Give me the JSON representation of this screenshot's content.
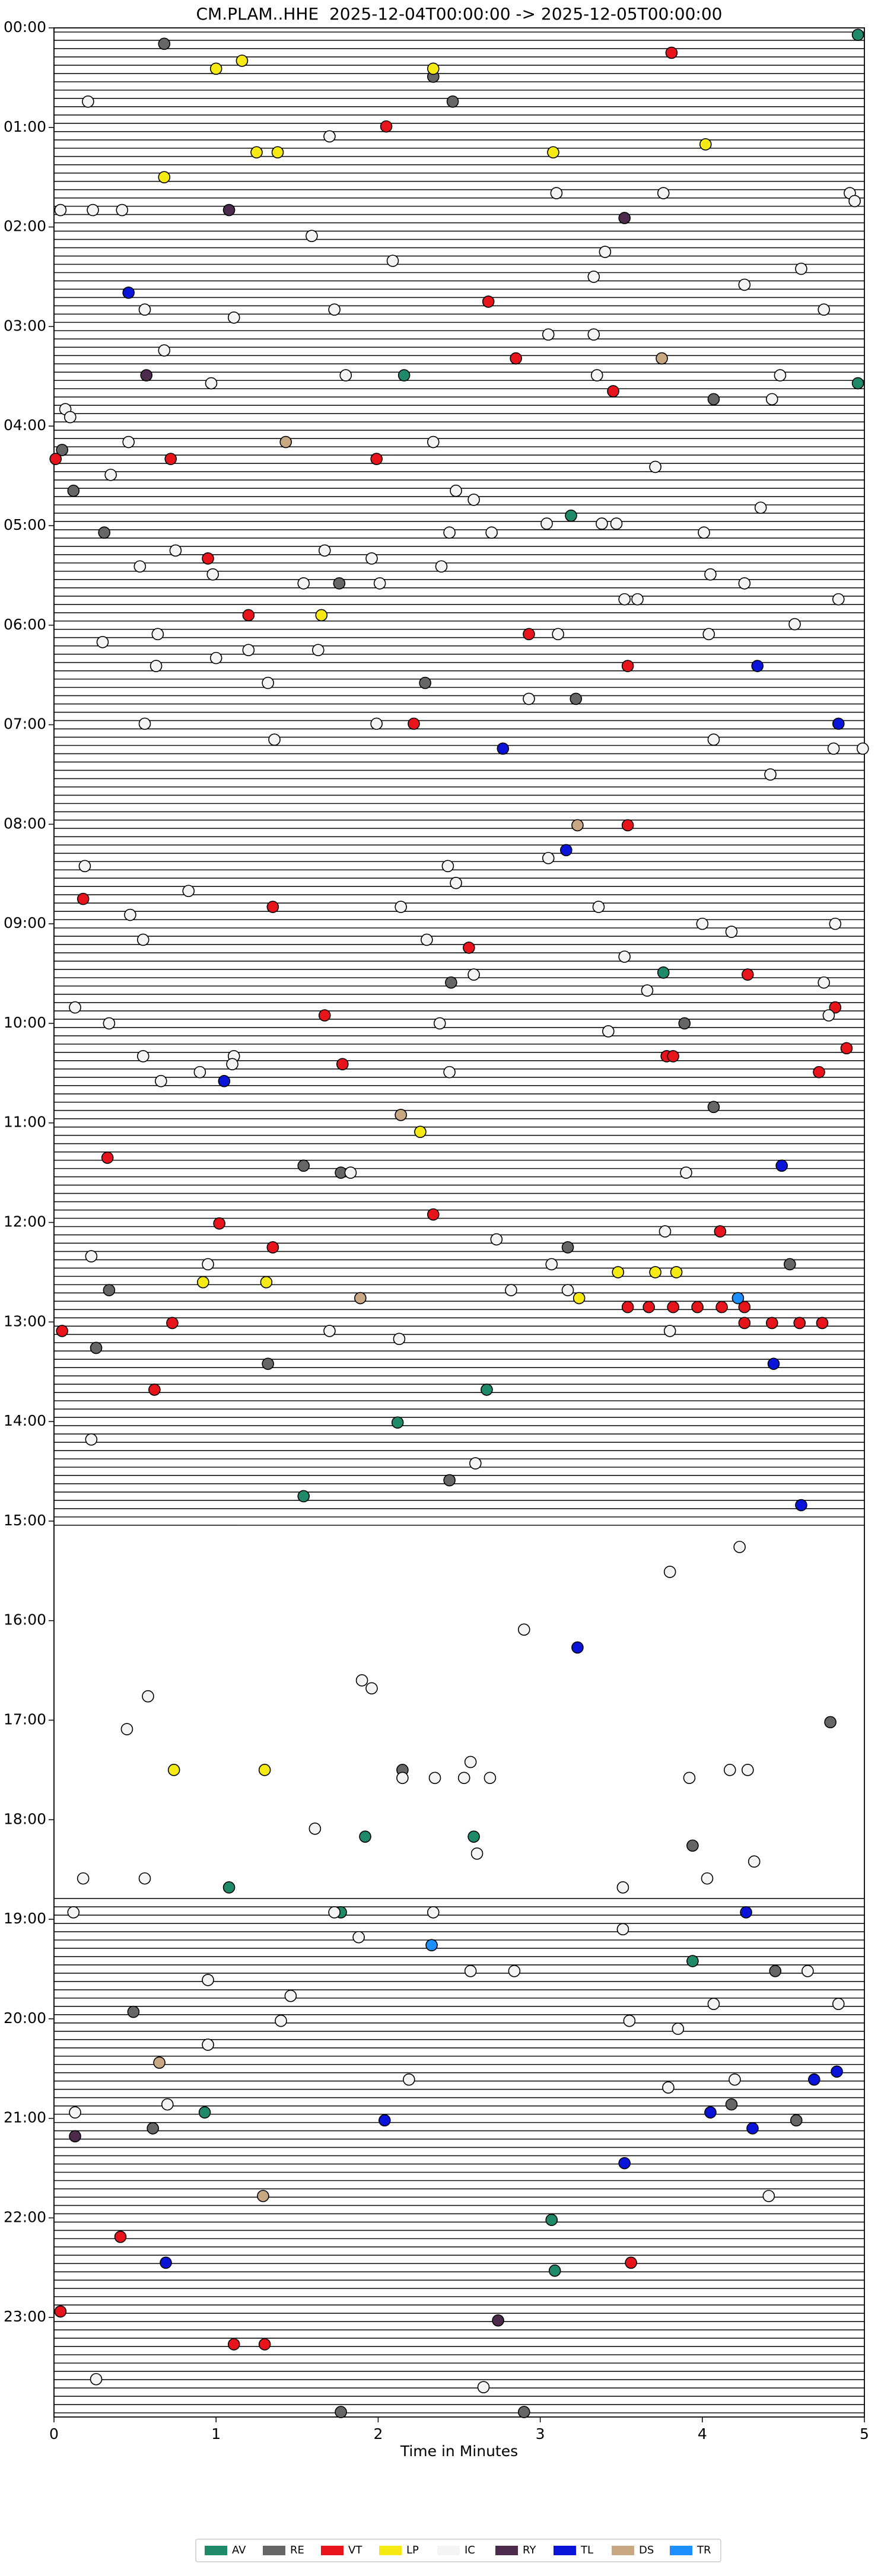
{
  "chart_data": {
    "type": "scatter",
    "title": "CM.PLAM..HHE  2025-12-04T00:00:00 -> 2025-12-05T00:00:00",
    "xlabel": "Time in Minutes",
    "xlim": [
      0,
      5
    ],
    "xticks": [
      0,
      1,
      2,
      3,
      4,
      5
    ],
    "ylim": [
      24,
      0
    ],
    "yticks": [
      {
        "value": 0,
        "label": "00:00"
      },
      {
        "value": 1,
        "label": "01:00"
      },
      {
        "value": 2,
        "label": "02:00"
      },
      {
        "value": 3,
        "label": "03:00"
      },
      {
        "value": 4,
        "label": "04:00"
      },
      {
        "value": 5,
        "label": "05:00"
      },
      {
        "value": 6,
        "label": "06:00"
      },
      {
        "value": 7,
        "label": "07:00"
      },
      {
        "value": 8,
        "label": "08:00"
      },
      {
        "value": 9,
        "label": "09:00"
      },
      {
        "value": 10,
        "label": "10:00"
      },
      {
        "value": 11,
        "label": "11:00"
      },
      {
        "value": 12,
        "label": "12:00"
      },
      {
        "value": 13,
        "label": "13:00"
      },
      {
        "value": 14,
        "label": "14:00"
      },
      {
        "value": 15,
        "label": "15:00"
      },
      {
        "value": 16,
        "label": "16:00"
      },
      {
        "value": 17,
        "label": "17:00"
      },
      {
        "value": 18,
        "label": "18:00"
      },
      {
        "value": 19,
        "label": "19:00"
      },
      {
        "value": 20,
        "label": "20:00"
      },
      {
        "value": 21,
        "label": "21:00"
      },
      {
        "value": 22,
        "label": "22:00"
      },
      {
        "value": 23,
        "label": "23:00"
      }
    ],
    "legend": "bottom",
    "series": [
      {
        "name": "AV",
        "color": "#1f8a6a",
        "x": [
          4.96,
          2.16,
          4.96,
          3.19,
          3.76,
          2.67,
          2.12,
          1.54,
          1.92,
          2.59,
          1.08,
          1.77,
          3.94,
          0.93,
          3.07,
          3.09
        ],
        "y": [
          0.07,
          3.49,
          3.57,
          4.9,
          9.49,
          13.68,
          14.01,
          14.75,
          18.17,
          18.17,
          18.68,
          18.93,
          19.42,
          20.94,
          22.02,
          22.53
        ]
      },
      {
        "name": "RE",
        "color": "#666666",
        "x": [
          0.68,
          2.34,
          2.46,
          4.07,
          0.05,
          0.12,
          0.31,
          1.76,
          2.29,
          3.22,
          2.45,
          3.89,
          4.07,
          1.54,
          1.77,
          3.17,
          4.54,
          0.34,
          0.26,
          1.32,
          2.44,
          4.79,
          2.15,
          3.94,
          4.45,
          0.49,
          4.18,
          4.58,
          0.61,
          1.77,
          2.9
        ],
        "y": [
          0.16,
          0.49,
          0.74,
          3.73,
          4.24,
          4.65,
          5.07,
          5.58,
          6.58,
          6.74,
          9.59,
          10.0,
          10.84,
          11.43,
          11.5,
          12.25,
          12.42,
          12.68,
          13.26,
          13.42,
          14.59,
          17.02,
          17.5,
          18.26,
          19.52,
          19.93,
          20.86,
          21.02,
          21.1,
          23.95,
          23.95
        ]
      },
      {
        "name": "VT",
        "color": "#e8141b",
        "x": [
          3.81,
          2.05,
          2.68,
          2.85,
          3.45,
          0.01,
          0.72,
          1.99,
          0.95,
          1.2,
          2.93,
          3.54,
          2.22,
          3.54,
          0.18,
          1.35,
          2.56,
          4.28,
          1.67,
          4.82,
          4.89,
          3.78,
          3.82,
          1.78,
          4.72,
          0.33,
          1.02,
          2.34,
          4.11,
          1.35,
          3.54,
          3.67,
          3.82,
          3.97,
          4.12,
          4.26,
          0.05,
          0.73,
          4.26,
          4.43,
          4.6,
          4.74,
          0.62,
          0.41,
          3.56,
          0.04,
          1.11,
          1.3
        ],
        "y": [
          0.25,
          0.99,
          2.75,
          3.32,
          3.65,
          4.33,
          4.33,
          4.33,
          5.33,
          5.9,
          6.09,
          6.41,
          6.99,
          8.01,
          8.75,
          8.83,
          9.24,
          9.51,
          9.92,
          9.84,
          10.25,
          10.33,
          10.33,
          10.41,
          10.49,
          11.35,
          12.01,
          11.92,
          12.09,
          12.25,
          12.85,
          12.85,
          12.85,
          12.85,
          12.85,
          12.85,
          13.09,
          13.01,
          13.01,
          13.01,
          13.01,
          13.01,
          13.68,
          22.19,
          22.45,
          22.94,
          23.27,
          23.27
        ]
      },
      {
        "name": "LP",
        "color": "#f5ea14",
        "x": [
          1.16,
          1.0,
          2.34,
          4.02,
          1.25,
          1.38,
          3.08,
          0.68,
          1.65,
          2.26,
          3.48,
          3.71,
          3.84,
          0.92,
          1.31,
          3.24,
          0.74,
          1.3
        ],
        "y": [
          0.33,
          0.41,
          0.41,
          1.17,
          1.25,
          1.25,
          1.25,
          1.5,
          5.9,
          11.09,
          12.5,
          12.5,
          12.5,
          12.6,
          12.6,
          12.76,
          17.5,
          17.5
        ]
      },
      {
        "name": "IC",
        "color": "#f4f4f4",
        "x": [
          0.21,
          1.7,
          3.1,
          3.76,
          4.91,
          4.94,
          0.04,
          0.24,
          0.42,
          1.59,
          3.4,
          2.09,
          4.61,
          3.33,
          4.26,
          0.56,
          1.73,
          4.75,
          1.11,
          3.05,
          3.33,
          0.68,
          1.8,
          3.35,
          4.48,
          0.97,
          4.43,
          0.07,
          0.1,
          0.46,
          2.34,
          3.71,
          0.35,
          2.48,
          2.59,
          4.36,
          3.04,
          3.38,
          3.47,
          2.44,
          2.7,
          4.01,
          0.75,
          1.67,
          1.96,
          0.53,
          2.39,
          0.98,
          4.05,
          1.54,
          2.01,
          4.26,
          3.52,
          3.6,
          4.84,
          4.57,
          0.64,
          3.11,
          4.04,
          0.3,
          1.2,
          1.63,
          1.0,
          0.63,
          1.32,
          2.93,
          0.56,
          1.99,
          1.36,
          4.07,
          4.81,
          4.99,
          4.42,
          3.05,
          0.19,
          2.43,
          2.48,
          0.83,
          2.14,
          3.36,
          0.47,
          4.0,
          4.82,
          4.18,
          0.55,
          2.3,
          3.52,
          2.59,
          4.75,
          3.66,
          0.13,
          4.78,
          0.34,
          2.38,
          3.42,
          0.55,
          1.11,
          1.1,
          0.9,
          2.44,
          0.66,
          1.83,
          3.9,
          3.77,
          2.73,
          0.23,
          0.95,
          3.07,
          2.82,
          3.17,
          3.8,
          1.7,
          2.13,
          0.23,
          2.6,
          4.23,
          3.8,
          2.9,
          1.9,
          1.96,
          0.58,
          0.45,
          2.57,
          4.17,
          4.28,
          2.15,
          2.35,
          2.53,
          2.69,
          3.92,
          1.61,
          2.61,
          4.32,
          0.18,
          0.56,
          4.03,
          3.51,
          0.12,
          1.73,
          2.34,
          3.51,
          1.88,
          2.57,
          2.84,
          4.65,
          0.95,
          1.46,
          4.84,
          4.07,
          1.4,
          3.55,
          3.85,
          0.95,
          2.19,
          4.2,
          3.79,
          0.7,
          0.13,
          4.41,
          0.26,
          2.65
        ],
        "y": [
          0.74,
          1.09,
          1.66,
          1.66,
          1.66,
          1.74,
          1.83,
          1.83,
          1.83,
          2.09,
          2.25,
          2.34,
          2.42,
          2.5,
          2.58,
          2.83,
          2.83,
          2.83,
          2.91,
          3.08,
          3.08,
          3.24,
          3.49,
          3.49,
          3.49,
          3.57,
          3.73,
          3.83,
          3.91,
          4.16,
          4.16,
          4.41,
          4.49,
          4.65,
          4.74,
          4.82,
          4.98,
          4.98,
          4.98,
          5.07,
          5.07,
          5.07,
          5.25,
          5.25,
          5.33,
          5.41,
          5.41,
          5.49,
          5.49,
          5.58,
          5.58,
          5.58,
          5.74,
          5.74,
          5.74,
          5.99,
          6.09,
          6.09,
          6.09,
          6.17,
          6.25,
          6.25,
          6.33,
          6.41,
          6.58,
          6.74,
          6.99,
          6.99,
          7.15,
          7.15,
          7.24,
          7.24,
          7.5,
          8.34,
          8.42,
          8.42,
          8.59,
          8.67,
          8.83,
          8.83,
          8.91,
          9.0,
          9.0,
          9.08,
          9.16,
          9.16,
          9.33,
          9.51,
          9.59,
          9.67,
          9.84,
          9.92,
          10.0,
          10.0,
          10.08,
          10.33,
          10.33,
          10.41,
          10.49,
          10.49,
          10.58,
          11.5,
          11.5,
          12.09,
          12.17,
          12.34,
          12.42,
          12.42,
          12.68,
          12.68,
          13.09,
          13.09,
          13.17,
          14.18,
          14.42,
          15.26,
          15.51,
          16.09,
          16.6,
          16.68,
          16.76,
          17.09,
          17.42,
          17.5,
          17.5,
          17.58,
          17.58,
          17.58,
          17.58,
          17.58,
          18.09,
          18.34,
          18.42,
          18.59,
          18.59,
          18.59,
          18.68,
          18.93,
          18.93,
          18.93,
          19.1,
          19.18,
          19.52,
          19.52,
          19.52,
          19.61,
          19.77,
          19.85,
          19.85,
          20.02,
          20.02,
          20.1,
          20.26,
          20.61,
          20.61,
          20.69,
          20.86,
          20.94,
          21.78,
          23.62,
          23.7
        ]
      },
      {
        "name": "RY",
        "color": "#4b2a4b",
        "x": [
          1.08,
          3.52,
          0.57,
          0.13,
          2.74
        ],
        "y": [
          1.83,
          1.91,
          3.49,
          21.18,
          23.03
        ]
      },
      {
        "name": "TL",
        "color": "#0a14d8",
        "x": [
          0.46,
          4.34,
          4.84,
          2.77,
          3.16,
          1.05,
          4.49,
          4.44,
          4.61,
          3.23,
          4.27,
          4.69,
          4.83,
          2.04,
          4.05,
          4.31,
          3.52,
          0.69
        ],
        "y": [
          2.66,
          6.41,
          6.99,
          7.24,
          8.26,
          10.58,
          11.43,
          13.42,
          14.84,
          16.27,
          18.93,
          20.61,
          20.53,
          21.02,
          20.94,
          21.1,
          21.45,
          22.45
        ]
      },
      {
        "name": "DS",
        "color": "#c8a882",
        "x": [
          3.75,
          1.43,
          3.23,
          2.14,
          1.89,
          0.65,
          1.29
        ],
        "y": [
          3.32,
          4.16,
          8.01,
          10.92,
          12.76,
          20.44,
          21.78
        ]
      },
      {
        "name": "TR",
        "color": "#1e8fff",
        "x": [
          4.22,
          2.33
        ],
        "y": [
          12.76,
          19.26
        ]
      }
    ]
  }
}
